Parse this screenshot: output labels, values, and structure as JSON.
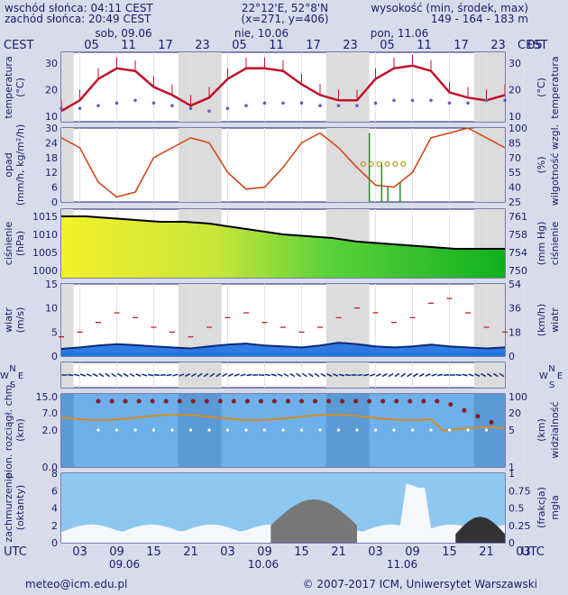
{
  "header": {
    "sunrise": "wschód słońca: 04:11 CEST",
    "sunset": "zachód słońca: 20:49 CEST",
    "coords": "22°12'E, 52°8'N",
    "grid": "(x=271, y=406)",
    "altitude_label": "wysokość (min, środek, max)",
    "altitude_values": "149 - 164 - 183 m"
  },
  "tz_top": "CEST",
  "tz_bottom": "UTC",
  "day_labels_top": [
    "sob, 09.06",
    "nie, 10.06",
    "pon, 11.06"
  ],
  "hour_labels_top": [
    "05",
    "11",
    "17",
    "23",
    "05",
    "11",
    "17",
    "23",
    "05",
    "11",
    "17",
    "23",
    "05"
  ],
  "hour_labels_bottom": [
    "03",
    "09",
    "15",
    "21",
    "03",
    "09",
    "15",
    "21",
    "03",
    "09",
    "15",
    "21",
    "03"
  ],
  "date_labels_bottom": [
    "09.06",
    "10.06",
    "11.06"
  ],
  "panels": {
    "temperature": {
      "left_label": "temperatura",
      "left_unit": "(°C)",
      "right_label": "temperatura",
      "right_unit": "(°C)",
      "ticks": [
        "30",
        "20",
        "10"
      ]
    },
    "precip": {
      "left_label": "opad",
      "left_unit": "(mm/h, kg/m²/h)",
      "right_label": "wilgotność wzgl.",
      "right_unit": "(%)",
      "left_ticks": [
        "30",
        "24",
        "18",
        "12",
        "6",
        "0"
      ],
      "right_ticks": [
        "100",
        "85",
        "70",
        "55",
        "40",
        "25"
      ]
    },
    "pressure": {
      "left_label": "ciśnienie",
      "left_unit": "(hPa)",
      "right_label": "ciśnienie",
      "right_unit": "(mm Hg)",
      "left_ticks": [
        "1015",
        "1010",
        "1005",
        "1000"
      ],
      "right_ticks": [
        "761",
        "758",
        "754",
        "750"
      ]
    },
    "wind": {
      "left_label": "wiatr",
      "left_unit": "(m/s)",
      "right_label": "wiatr",
      "right_unit": "(km/h)",
      "left_ticks": [
        "15",
        "10",
        "5",
        "0"
      ],
      "right_ticks": [
        "54",
        "36",
        "18",
        "0"
      ]
    },
    "direction": {
      "compass_n": "N",
      "compass_s": "S",
      "compass_w": "W",
      "compass_e": "E"
    },
    "visibility": {
      "left_label": "pion. rozciągł. chm.",
      "left_unit": "(km)",
      "right_label": "widzialność",
      "right_unit": "(km)",
      "left_ticks": [
        "15.0",
        "7.0",
        "2.0",
        "0.0"
      ],
      "right_ticks": [
        "100",
        "20",
        "5",
        "1"
      ]
    },
    "clouds": {
      "left_label": "zachmurzenie",
      "left_unit": "(oktanty)",
      "right_label": "mgła",
      "right_unit": "(frakcja)",
      "left_ticks": [
        "8",
        "6",
        "4",
        "2",
        "0"
      ],
      "right_ticks": [
        "1",
        "0.75",
        "0.5",
        "0.25",
        "0"
      ]
    }
  },
  "footer": {
    "email": "meteo@icm.edu.pl",
    "copyright": "© 2007-2017 ICM, Uniwersytet Warszawski"
  },
  "colors": {
    "temp": "#c0102a",
    "dew": "#6060c0",
    "humidity": "#d04010",
    "pressure": "#000000",
    "wind": "#0a2a7a",
    "gust": "#c01010",
    "vis": "#e08a10",
    "cloudbase": "#8b1a1a",
    "sky": "#8ec8f0"
  },
  "chart_data": {
    "type": "line",
    "x_hours": [
      0,
      6,
      12,
      18,
      24,
      30,
      36,
      42,
      48,
      54,
      60,
      66,
      72
    ],
    "temperature": [
      12,
      16,
      24,
      28,
      27,
      21,
      18,
      14,
      17,
      24,
      28,
      28,
      27,
      22,
      18,
      16,
      16,
      24,
      28,
      29,
      27,
      19,
      17,
      16,
      18
    ],
    "dew_point": [
      13,
      13,
      14,
      15,
      16,
      15,
      14,
      13,
      12,
      13,
      14,
      15,
      15,
      15,
      14,
      14,
      14,
      15,
      16,
      16,
      16,
      15,
      15,
      16,
      16
    ],
    "humidity": [
      90,
      80,
      45,
      30,
      35,
      70,
      80,
      90,
      85,
      55,
      38,
      40,
      60,
      85,
      95,
      80,
      60,
      42,
      40,
      55,
      90,
      95,
      100,
      90,
      80
    ],
    "pressure": [
      1015,
      1015,
      1014.5,
      1014,
      1013.5,
      1013.5,
      1013,
      1012,
      1011,
      1010,
      1009.5,
      1009,
      1008,
      1007.5,
      1007,
      1006.5,
      1006,
      1006,
      1006
    ],
    "wind_speed": [
      1.5,
      1.8,
      2.2,
      2.5,
      2.3,
      2.0,
      1.8,
      1.6,
      2.0,
      2.4,
      2.6,
      2.2,
      2.0,
      1.8,
      2.2,
      2.8,
      2.5,
      2.0,
      1.8,
      2.0,
      2.4,
      2.0,
      1.8,
      1.6,
      1.8
    ],
    "wind_gust": [
      4,
      5,
      7,
      9,
      8,
      6,
      5,
      4,
      6,
      8,
      9,
      7,
      6,
      5,
      6,
      8,
      10,
      9,
      7,
      8,
      11,
      12,
      9,
      6,
      5
    ]
  }
}
